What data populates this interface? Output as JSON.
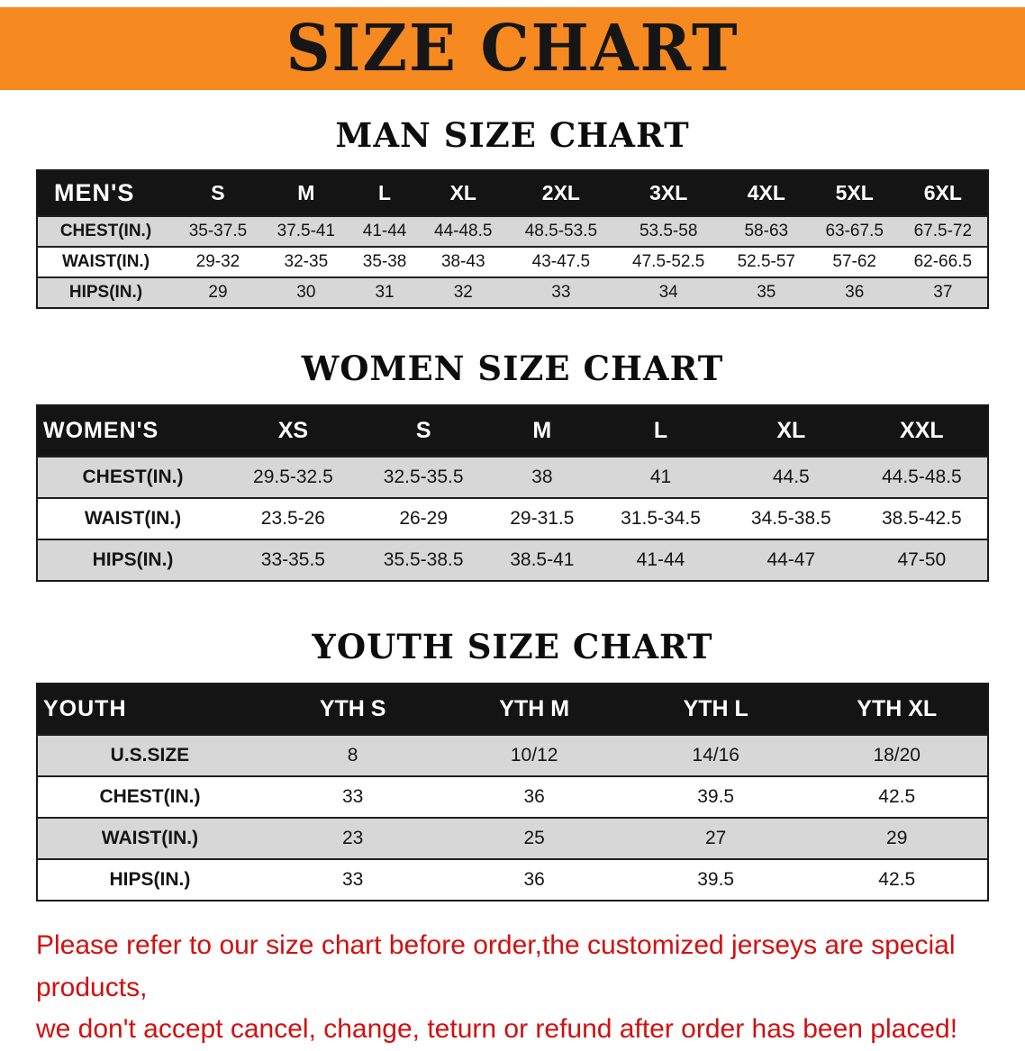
{
  "banner": {
    "title": "SIZE CHART",
    "bg_color": "#f6891f",
    "text_color": "#161616"
  },
  "sections": [
    {
      "heading": "MAN SIZE CHART",
      "table": {
        "header": [
          "MEN'S",
          "S",
          "M",
          "L",
          "XL",
          "2XL",
          "3XL",
          "4XL",
          "5XL",
          "6XL"
        ],
        "rows": [
          {
            "label": "CHEST(IN.)",
            "values": [
              "35-37.5",
              "37.5-41",
              "41-44",
              "44-48.5",
              "48.5-53.5",
              "53.5-58",
              "58-63",
              "63-67.5",
              "67.5-72"
            ]
          },
          {
            "label": "WAIST(IN.)",
            "values": [
              "29-32",
              "32-35",
              "35-38",
              "38-43",
              "43-47.5",
              "47.5-52.5",
              "52.5-57",
              "57-62",
              "62-66.5"
            ]
          },
          {
            "label": "HIPS(IN.)",
            "values": [
              "29",
              "30",
              "31",
              "32",
              "33",
              "34",
              "35",
              "36",
              "37"
            ]
          }
        ]
      }
    },
    {
      "heading": "WOMEN SIZE CHART",
      "table": {
        "header": [
          "WOMEN'S",
          "XS",
          "S",
          "M",
          "L",
          "XL",
          "XXL"
        ],
        "rows": [
          {
            "label": "CHEST(IN.)",
            "values": [
              "29.5-32.5",
              "32.5-35.5",
              "38",
              "41",
              "44.5",
              "44.5-48.5"
            ]
          },
          {
            "label": "WAIST(IN.)",
            "values": [
              "23.5-26",
              "26-29",
              "29-31.5",
              "31.5-34.5",
              "34.5-38.5",
              "38.5-42.5"
            ]
          },
          {
            "label": "HIPS(IN.)",
            "values": [
              "33-35.5",
              "35.5-38.5",
              "38.5-41",
              "41-44",
              "44-47",
              "47-50"
            ]
          }
        ]
      }
    },
    {
      "heading": "YOUTH SIZE CHART",
      "table": {
        "header": [
          "YOUTH",
          "YTH S",
          "YTH M",
          "YTH L",
          "YTH XL"
        ],
        "rows": [
          {
            "label": "U.S.SIZE",
            "values": [
              "8",
              "10/12",
              "14/16",
              "18/20"
            ]
          },
          {
            "label": "CHEST(IN.)",
            "values": [
              "33",
              "36",
              "39.5",
              "42.5"
            ]
          },
          {
            "label": "WAIST(IN.)",
            "values": [
              "23",
              "25",
              "27",
              "29"
            ]
          },
          {
            "label": "HIPS(IN.)",
            "values": [
              "33",
              "36",
              "39.5",
              "42.5"
            ]
          }
        ]
      }
    }
  ],
  "footer": {
    "line1": "Please refer to our size chart before order,the customized jerseys are special products,",
    "line2": "we don't accept cancel, change, teturn or refund after order has been placed!",
    "text_color": "#d21010"
  },
  "colors": {
    "table_header_bg": "#141414",
    "table_header_text": "#ffffff",
    "stripe_gray": "#d7d7d7",
    "stripe_white": "#ffffff",
    "table_border": "#1a1a1a"
  }
}
